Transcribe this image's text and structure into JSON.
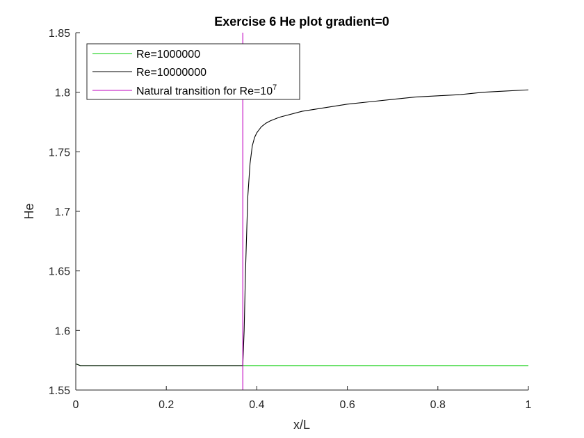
{
  "chart_data": {
    "type": "line",
    "title": "Exercise 6 He plot gradient=0",
    "xlabel": "x/L",
    "ylabel": "He",
    "xlim": [
      0,
      1
    ],
    "ylim": [
      1.55,
      1.85
    ],
    "xticks": [
      "0",
      "0.2",
      "0.4",
      "0.6",
      "0.8",
      "1"
    ],
    "yticks": [
      "1.55",
      "1.6",
      "1.65",
      "1.7",
      "1.75",
      "1.8",
      "1.85"
    ],
    "grid": false,
    "legend_position": "top-left",
    "series": [
      {
        "name": "Re=1000000",
        "color": "#00cc00",
        "x": [
          0,
          0.01,
          0.37,
          1.0
        ],
        "y": [
          1.572,
          1.5705,
          1.5705,
          1.5705
        ]
      },
      {
        "name": "Re=10000000",
        "color": "#000000",
        "x": [
          0,
          0.01,
          0.369,
          0.372,
          0.375,
          0.38,
          0.385,
          0.39,
          0.395,
          0.4,
          0.41,
          0.42,
          0.43,
          0.45,
          0.5,
          0.55,
          0.6,
          0.65,
          0.7,
          0.75,
          0.8,
          0.85,
          0.9,
          0.95,
          1.0
        ],
        "y": [
          1.572,
          1.5705,
          1.5705,
          1.6,
          1.65,
          1.712,
          1.74,
          1.755,
          1.762,
          1.766,
          1.771,
          1.774,
          1.776,
          1.779,
          1.784,
          1.787,
          1.79,
          1.792,
          1.794,
          1.796,
          1.797,
          1.798,
          1.8,
          1.801,
          1.802
        ]
      }
    ],
    "vertical_lines": [
      {
        "name_prefix": "Natural transition for Re=10",
        "name_superscript": "7",
        "x": 0.369,
        "color": "#bf00bf"
      }
    ]
  }
}
